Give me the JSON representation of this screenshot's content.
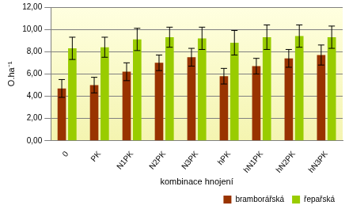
{
  "chart_data": {
    "type": "bar",
    "x_label": "kombinace hnojení",
    "y_label": "O.ha⁻¹",
    "categories": [
      "0",
      "PK",
      "N1PK",
      "N2PK",
      "N3PK",
      "hPK",
      "hN1PK",
      "hN2PK",
      "hN3PK"
    ],
    "series": [
      {
        "name": "bramborářská",
        "color": "#993300",
        "values": [
          4.7,
          5.0,
          6.2,
          7.0,
          7.5,
          5.8,
          6.7,
          7.4,
          7.7
        ],
        "errors": [
          0.8,
          0.7,
          0.8,
          0.7,
          0.8,
          0.7,
          0.7,
          0.8,
          0.9
        ]
      },
      {
        "name": "řepařská",
        "color": "#99cc00",
        "values": [
          8.3,
          8.4,
          9.1,
          9.3,
          9.2,
          8.8,
          9.3,
          9.4,
          9.3
        ],
        "errors": [
          1.0,
          0.9,
          1.0,
          0.9,
          1.0,
          1.1,
          1.1,
          1.0,
          1.0
        ]
      }
    ],
    "ylim": [
      0,
      12
    ],
    "yticks": [
      {
        "value": 0,
        "label": "0,00"
      },
      {
        "value": 2,
        "label": "2,00"
      },
      {
        "value": 4,
        "label": "4,00"
      },
      {
        "value": 6,
        "label": "6,00"
      },
      {
        "value": 8,
        "label": "8,00"
      },
      {
        "value": 10,
        "label": "10,00"
      },
      {
        "value": 12,
        "label": "12,00"
      }
    ],
    "grid": true,
    "legend": "bottom"
  }
}
